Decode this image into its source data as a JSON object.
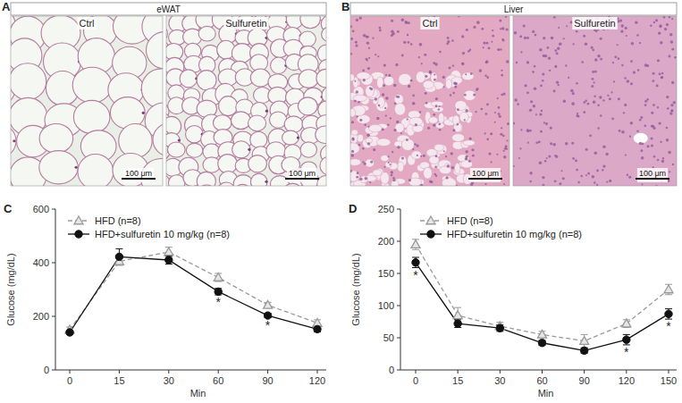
{
  "images": {
    "A": {
      "label": "A",
      "title": "eWAT",
      "panels": [
        "Ctrl",
        "Sulfuretin"
      ],
      "scale_bar": "100 μm"
    },
    "B": {
      "label": "B",
      "title": "Liver",
      "panels": [
        "Ctrl",
        "Sulfuretin"
      ],
      "scale_bar": "100 μm"
    }
  },
  "chart_data": [
    {
      "type": "line",
      "panel_label": "C",
      "y_label": "Glucose (mg/dL)",
      "x_label": "Min",
      "categories": [
        "0",
        "15",
        "30",
        "60",
        "90",
        "120"
      ],
      "ylim": [
        0,
        600
      ],
      "yticks": [
        0,
        200,
        400,
        600
      ],
      "legend": "upper left",
      "grid": false,
      "series": [
        {
          "name": "HFD (n=8)",
          "color": "#999999",
          "marker": "triangle",
          "line_style": "dashed",
          "values": [
            150,
            405,
            440,
            345,
            242,
            175
          ],
          "errors": [
            10,
            15,
            18,
            15,
            10,
            12
          ]
        },
        {
          "name": "HFD+sulfuretin 10 mg/kg (n=8)",
          "color": "#111111",
          "marker": "circle",
          "line_style": "solid",
          "values": [
            140,
            422,
            410,
            292,
            203,
            152
          ],
          "errors": [
            8,
            30,
            15,
            12,
            8,
            10
          ]
        }
      ],
      "annotations": [
        {
          "text": "*",
          "at": "60"
        },
        {
          "text": "*",
          "at": "90"
        }
      ]
    },
    {
      "type": "line",
      "panel_label": "D",
      "y_label": "Glucose (mg/dL)",
      "x_label": "Min",
      "categories": [
        "0",
        "15",
        "30",
        "60",
        "90",
        "120",
        "150"
      ],
      "ylim": [
        0,
        250
      ],
      "yticks": [
        0,
        50,
        100,
        150,
        200,
        250
      ],
      "legend": "upper left",
      "grid": false,
      "series": [
        {
          "name": "HFD (n=8)",
          "color": "#999999",
          "marker": "triangle",
          "line_style": "dashed",
          "values": [
            195,
            85,
            68,
            55,
            45,
            72,
            125
          ],
          "errors": [
            8,
            12,
            6,
            5,
            10,
            6,
            8
          ]
        },
        {
          "name": "HFD+sulfuretin 10 mg/kg (n=8)",
          "color": "#111111",
          "marker": "circle",
          "line_style": "solid",
          "values": [
            167,
            72,
            65,
            42,
            30,
            47,
            87
          ],
          "errors": [
            8,
            6,
            5,
            4,
            4,
            8,
            8
          ]
        }
      ],
      "annotations": [
        {
          "text": "*",
          "at": "0"
        },
        {
          "text": "*",
          "at": "120"
        },
        {
          "text": "*",
          "at": "150"
        }
      ]
    }
  ]
}
